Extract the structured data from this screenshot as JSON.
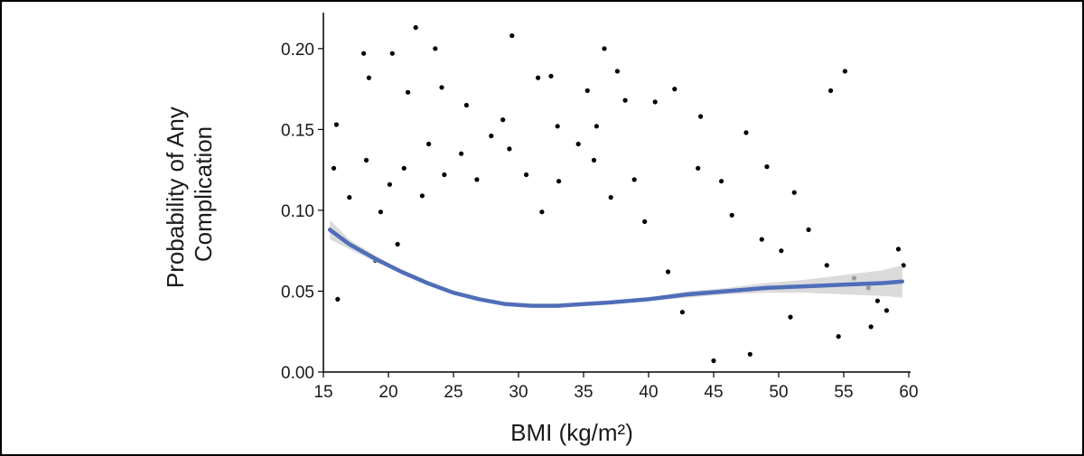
{
  "chart_data": {
    "type": "scatter",
    "title": "",
    "xlabel": "BMI (kg/m²)",
    "ylabel_lines": [
      "Probability of Any",
      "Complication"
    ],
    "xlim": [
      15,
      60
    ],
    "ylim": [
      0,
      0.22
    ],
    "x_ticks": [
      15,
      20,
      25,
      30,
      35,
      40,
      45,
      50,
      55,
      60
    ],
    "x_tick_labels": [
      "15",
      "20",
      "25",
      "30",
      "35",
      "40",
      "45",
      "50",
      "55",
      "60"
    ],
    "y_ticks": [
      0,
      0.05,
      0.1,
      0.15,
      0.2
    ],
    "y_tick_labels": [
      "0.00",
      "0.05",
      "0.10",
      "0.15",
      "0.20"
    ],
    "grid": false,
    "legend": "none",
    "series": [
      {
        "type": "scatter",
        "color": "#000000",
        "points": [
          [
            22.1,
            0.213
          ],
          [
            23.6,
            0.2
          ],
          [
            29.5,
            0.208
          ],
          [
            36.6,
            0.2
          ],
          [
            18.1,
            0.197
          ],
          [
            20.3,
            0.197
          ],
          [
            37.6,
            0.186
          ],
          [
            55.1,
            0.186
          ],
          [
            18.5,
            0.182
          ],
          [
            32.5,
            0.183
          ],
          [
            31.5,
            0.182
          ],
          [
            35.3,
            0.174
          ],
          [
            54.0,
            0.174
          ],
          [
            42.0,
            0.175
          ],
          [
            21.5,
            0.173
          ],
          [
            24.1,
            0.176
          ],
          [
            26.0,
            0.165
          ],
          [
            40.5,
            0.167
          ],
          [
            16.0,
            0.153
          ],
          [
            44.0,
            0.158
          ],
          [
            47.5,
            0.148
          ],
          [
            36.0,
            0.152
          ],
          [
            33.0,
            0.152
          ],
          [
            38.2,
            0.168
          ],
          [
            28.8,
            0.156
          ],
          [
            49.1,
            0.127
          ],
          [
            51.2,
            0.111
          ],
          [
            43.8,
            0.126
          ],
          [
            45.6,
            0.118
          ],
          [
            46.4,
            0.097
          ],
          [
            48.7,
            0.082
          ],
          [
            50.2,
            0.075
          ],
          [
            52.3,
            0.088
          ],
          [
            53.7,
            0.066
          ],
          [
            55.8,
            0.058
          ],
          [
            56.9,
            0.052
          ],
          [
            57.6,
            0.044
          ],
          [
            58.3,
            0.038
          ],
          [
            59.2,
            0.076
          ],
          [
            59.6,
            0.066
          ],
          [
            54.6,
            0.022
          ],
          [
            57.1,
            0.028
          ],
          [
            50.9,
            0.034
          ],
          [
            47.8,
            0.011
          ],
          [
            45.0,
            0.007
          ],
          [
            16.1,
            0.045
          ],
          [
            15.8,
            0.126
          ],
          [
            17.0,
            0.108
          ],
          [
            18.3,
            0.131
          ],
          [
            19.4,
            0.099
          ],
          [
            19.0,
            0.069
          ],
          [
            20.7,
            0.079
          ],
          [
            41.5,
            0.062
          ],
          [
            42.6,
            0.037
          ],
          [
            39.7,
            0.093
          ],
          [
            38.9,
            0.119
          ],
          [
            37.1,
            0.108
          ],
          [
            35.8,
            0.131
          ],
          [
            34.6,
            0.141
          ],
          [
            33.1,
            0.118
          ],
          [
            31.8,
            0.099
          ],
          [
            30.6,
            0.122
          ],
          [
            29.3,
            0.138
          ],
          [
            27.9,
            0.146
          ],
          [
            26.8,
            0.119
          ],
          [
            25.6,
            0.135
          ],
          [
            24.3,
            0.122
          ],
          [
            23.1,
            0.141
          ],
          [
            22.6,
            0.109
          ],
          [
            21.2,
            0.126
          ],
          [
            20.1,
            0.116
          ]
        ]
      },
      {
        "type": "line",
        "name": "",
        "color": "#4f6db8",
        "band_color": "#cfcfcf",
        "x": [
          15.5,
          17,
          19,
          21,
          23,
          25,
          27,
          29,
          31,
          33,
          35,
          37,
          40,
          43,
          46,
          49,
          52,
          55,
          58,
          59.5
        ],
        "y": [
          0.088,
          0.079,
          0.07,
          0.062,
          0.055,
          0.049,
          0.045,
          0.042,
          0.041,
          0.041,
          0.042,
          0.043,
          0.045,
          0.048,
          0.05,
          0.052,
          0.053,
          0.054,
          0.055,
          0.056
        ],
        "band_lower": [
          0.082,
          0.076,
          0.068,
          0.061,
          0.054,
          0.048,
          0.044,
          0.041,
          0.04,
          0.04,
          0.041,
          0.042,
          0.044,
          0.046,
          0.048,
          0.049,
          0.049,
          0.048,
          0.047,
          0.046
        ],
        "band_upper": [
          0.094,
          0.082,
          0.072,
          0.063,
          0.056,
          0.05,
          0.046,
          0.043,
          0.042,
          0.042,
          0.043,
          0.044,
          0.046,
          0.05,
          0.052,
          0.055,
          0.057,
          0.06,
          0.063,
          0.066
        ]
      }
    ]
  }
}
